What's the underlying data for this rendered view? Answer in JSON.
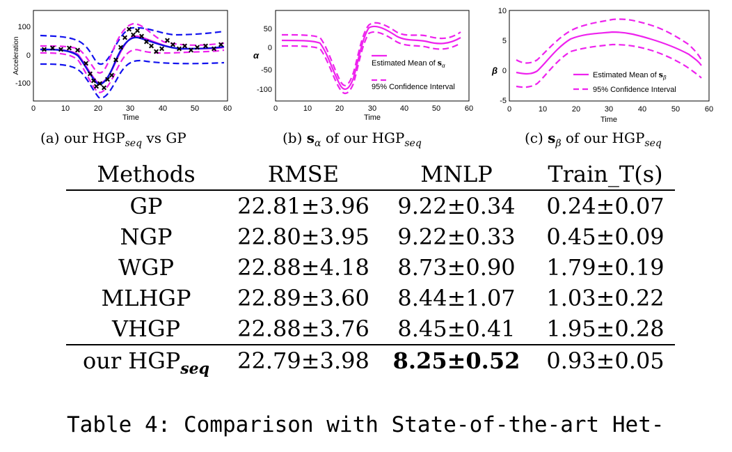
{
  "charts": [
    {
      "panel": "a",
      "ylabel": "Acceleration",
      "xlabel": "Time",
      "xticks": [
        "0",
        "10",
        "20",
        "30",
        "40",
        "50",
        "60"
      ],
      "yticks": [
        "100",
        "0",
        "-100"
      ],
      "caption": {
        "prefix": "(a) our HGP",
        "sub": "seq",
        "suffix": " vs GP"
      },
      "colors": {
        "mean": "#1111dd",
        "gp_band": "#1111ee",
        "hgp_band": "#ee22ee",
        "points": "#000000"
      }
    },
    {
      "panel": "b",
      "ylabel": "α",
      "xlabel": "Time",
      "xticks": [
        "0",
        "10",
        "20",
        "30",
        "40",
        "50",
        "60"
      ],
      "yticks": [
        "50",
        "0",
        "-50",
        "-100"
      ],
      "legend": [
        "Estimated Mean of",
        "95% Confidence Interval"
      ],
      "legend_sym": "s",
      "legend_sym_sub": "α",
      "caption": {
        "prefix": "(b) ",
        "sym": "s",
        "sym_sub": "α",
        "mid": " of our HGP",
        "sub": "seq"
      },
      "color": "#ee22ee"
    },
    {
      "panel": "c",
      "ylabel": "β",
      "xlabel": "Time",
      "xticks": [
        "0",
        "10",
        "20",
        "30",
        "40",
        "50",
        "60"
      ],
      "yticks": [
        "10",
        "5",
        "0",
        "-5"
      ],
      "legend": [
        "Estimated Mean of",
        "95% Confidence Interval"
      ],
      "legend_sym": "s",
      "legend_sym_sub": "β",
      "caption": {
        "prefix": "(c) ",
        "sym": "s",
        "sym_sub": "β",
        "mid": " of our HGP",
        "sub": "seq"
      },
      "color": "#ee22ee"
    }
  ],
  "table": {
    "headers": [
      "Methods",
      "RMSE",
      "MNLP",
      "Train_T(s)"
    ],
    "rows": [
      [
        "GP",
        "22.81±3.96",
        "9.22±0.34",
        "0.24±0.07"
      ],
      [
        "NGP",
        "22.80±3.95",
        "9.22±0.33",
        "0.45±0.09"
      ],
      [
        "WGP",
        "22.88±4.18",
        "8.73±0.90",
        "1.79±0.19"
      ],
      [
        "MLHGP",
        "22.89±3.60",
        "8.44±1.07",
        "1.03±0.22"
      ],
      [
        "VHGP",
        "22.88±3.76",
        "8.45±0.41",
        "1.95±0.28"
      ]
    ],
    "last_row": {
      "method_prefix": "our HGP",
      "method_sub": "seq",
      "rmse": "22.79±3.98",
      "mnlp": "8.25±0.52",
      "train": "0.93±0.05"
    }
  },
  "table_caption": "Table 4: Comparison with State-of-the-art Het-"
}
